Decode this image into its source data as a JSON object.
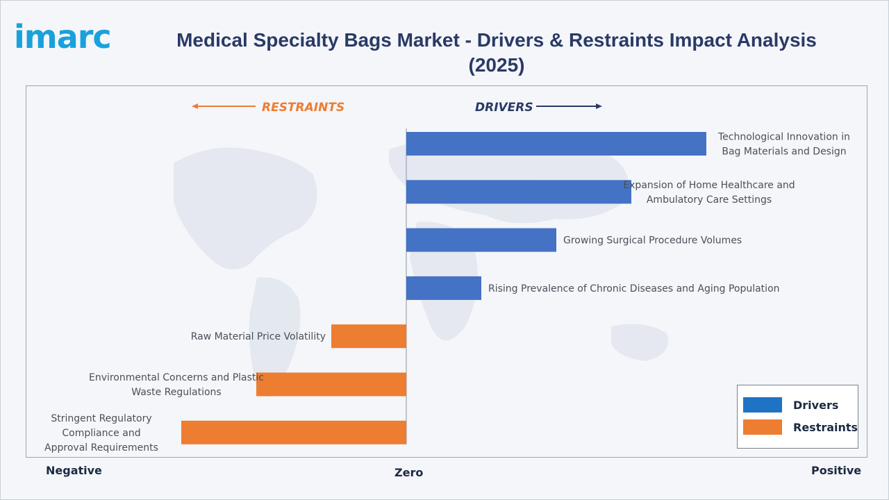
{
  "brand": {
    "logo_text": "imarc",
    "logo_color": "#1aa1dc"
  },
  "title": "Medical Specialty Bags Market - Drivers & Restraints Impact Analysis (2025)",
  "directions": {
    "restraints": "RESTRAINTS",
    "drivers": "DRIVERS"
  },
  "axis": {
    "negative": "Negative",
    "zero": "Zero",
    "positive": "Positive"
  },
  "legend": {
    "drivers": "Drivers",
    "restraints": "Restraints"
  },
  "colors": {
    "drivers": "#4472c4",
    "restraints": "#ed7d31",
    "title": "#2a3a66",
    "legend_drivers": "#1f73c4"
  },
  "chart_data": {
    "type": "bar",
    "orientation": "horizontal-diverging",
    "title": "Medical Specialty Bags Market - Drivers & Restraints Impact Analysis (2025)",
    "xlim": [
      -3,
      6
    ],
    "categories": [
      "Technological Innovation in Bag Materials and Design",
      "Expansion of Home Healthcare and Ambulatory Care Settings",
      "Growing Surgical Procedure Volumes",
      "Rising Prevalence of Chronic Diseases and Aging Population",
      "Raw Material Price Volatility",
      "Environmental Concerns and Plastic Waste Regulations",
      "Stringent Regulatory Compliance and Approval Requirements"
    ],
    "series": [
      {
        "name": "Drivers",
        "values": [
          4.0,
          3.0,
          2.0,
          1.0,
          null,
          null,
          null
        ]
      },
      {
        "name": "Restraints",
        "values": [
          null,
          null,
          null,
          null,
          -1.0,
          -2.0,
          -3.0
        ]
      }
    ],
    "label_lines": [
      [
        "Technological Innovation in",
        "Bag Materials and Design"
      ],
      [
        "Expansion of Home Healthcare and",
        "Ambulatory Care Settings"
      ],
      [
        "Growing Surgical Procedure Volumes"
      ],
      [
        "Rising Prevalence of Chronic Diseases and Aging Population"
      ],
      [
        "Raw Material Price Volatility"
      ],
      [
        "Environmental Concerns and Plastic",
        "Waste Regulations"
      ],
      [
        "Stringent Regulatory",
        "Compliance and",
        "Approval Requirements"
      ]
    ],
    "legend_position": "bottom-right",
    "grid": false
  }
}
